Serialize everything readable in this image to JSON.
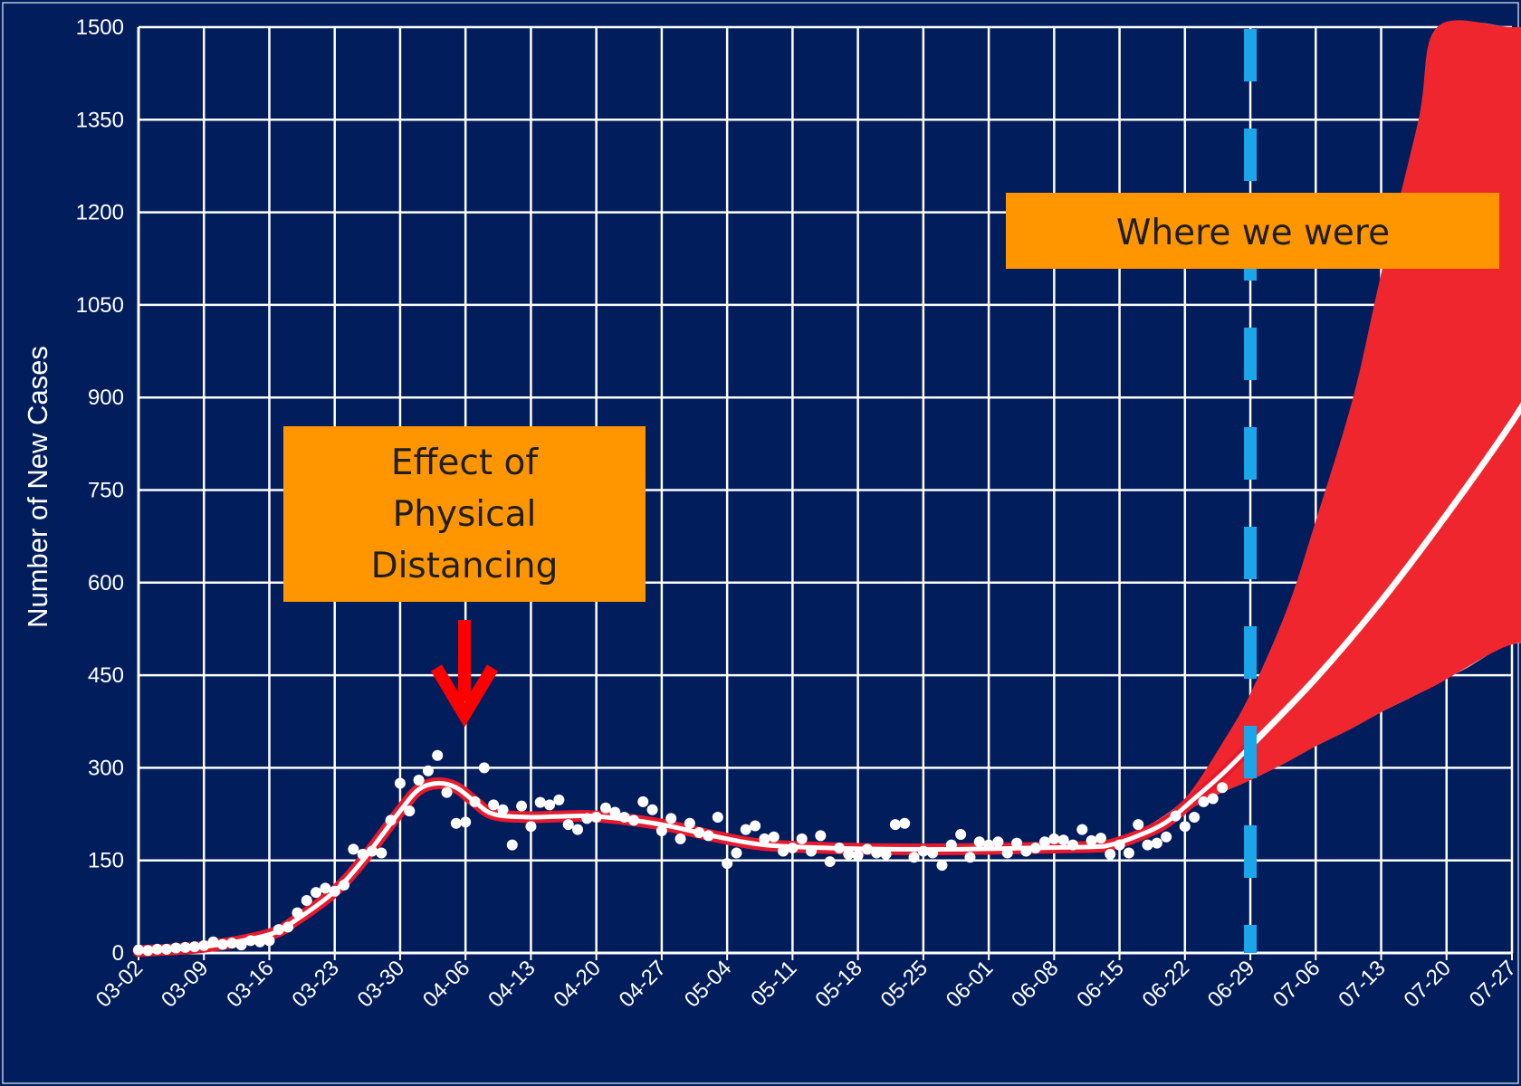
{
  "chart_data": {
    "type": "line",
    "title": "",
    "xlabel": "",
    "ylabel": "Number of New Cases",
    "ylim": [
      0,
      1500
    ],
    "xlim": [
      "03-02",
      "07-27"
    ],
    "yticks": [
      0,
      150,
      300,
      450,
      600,
      750,
      900,
      1050,
      1200,
      1350,
      1500
    ],
    "xticks": [
      "03-02",
      "03-09",
      "03-16",
      "03-23",
      "03-30",
      "04-06",
      "04-13",
      "04-20",
      "04-27",
      "05-04",
      "05-11",
      "05-18",
      "05-25",
      "06-01",
      "06-08",
      "06-15",
      "06-22",
      "06-29",
      "07-06",
      "07-13",
      "07-20",
      "07-27"
    ],
    "grid": true,
    "colors": {
      "background": "#021d5b",
      "grid": "#ffffff",
      "points": "#ffffff",
      "fit_line": "#ffffff",
      "fit_outline": "#e8192c",
      "projection_band": "#f0262f",
      "projection_band_outer": "#c9a0b6",
      "vline": "#1aa6e8",
      "annotation_box": "#ff9600",
      "arrow": "#ff0000"
    },
    "observed_points": [
      [
        "03-02",
        5
      ],
      [
        "03-03",
        4
      ],
      [
        "03-04",
        6
      ],
      [
        "03-05",
        6
      ],
      [
        "03-06",
        8
      ],
      [
        "03-07",
        9
      ],
      [
        "03-08",
        10
      ],
      [
        "03-09",
        12
      ],
      [
        "03-10",
        18
      ],
      [
        "03-11",
        14
      ],
      [
        "03-12",
        16
      ],
      [
        "03-13",
        13
      ],
      [
        "03-14",
        20
      ],
      [
        "03-15",
        18
      ],
      [
        "03-16",
        20
      ],
      [
        "03-17",
        38
      ],
      [
        "03-18",
        42
      ],
      [
        "03-19",
        65
      ],
      [
        "03-20",
        85
      ],
      [
        "03-21",
        98
      ],
      [
        "03-22",
        105
      ],
      [
        "03-23",
        100
      ],
      [
        "03-24",
        110
      ],
      [
        "03-25",
        168
      ],
      [
        "03-26",
        160
      ],
      [
        "03-27",
        165
      ],
      [
        "03-28",
        162
      ],
      [
        "03-29",
        215
      ],
      [
        "03-30",
        275
      ],
      [
        "03-31",
        230
      ],
      [
        "04-01",
        280
      ],
      [
        "04-02",
        295
      ],
      [
        "04-03",
        320
      ],
      [
        "04-04",
        260
      ],
      [
        "04-05",
        210
      ],
      [
        "04-06",
        212
      ],
      [
        "04-07",
        245
      ],
      [
        "04-08",
        300
      ],
      [
        "04-09",
        240
      ],
      [
        "04-10",
        232
      ],
      [
        "04-11",
        175
      ],
      [
        "04-12",
        238
      ],
      [
        "04-13",
        205
      ],
      [
        "04-14",
        244
      ],
      [
        "04-15",
        240
      ],
      [
        "04-16",
        248
      ],
      [
        "04-17",
        208
      ],
      [
        "04-18",
        200
      ],
      [
        "04-19",
        218
      ],
      [
        "04-20",
        220
      ],
      [
        "04-21",
        235
      ],
      [
        "04-22",
        228
      ],
      [
        "04-23",
        220
      ],
      [
        "04-24",
        215
      ],
      [
        "04-25",
        245
      ],
      [
        "04-26",
        232
      ],
      [
        "04-27",
        198
      ],
      [
        "04-28",
        218
      ],
      [
        "04-29",
        185
      ],
      [
        "04-30",
        210
      ],
      [
        "05-01",
        195
      ],
      [
        "05-02",
        190
      ],
      [
        "05-03",
        220
      ],
      [
        "05-04",
        145
      ],
      [
        "05-05",
        162
      ],
      [
        "05-06",
        200
      ],
      [
        "05-07",
        206
      ],
      [
        "05-08",
        185
      ],
      [
        "05-09",
        188
      ],
      [
        "05-10",
        165
      ],
      [
        "05-11",
        170
      ],
      [
        "05-12",
        185
      ],
      [
        "05-13",
        165
      ],
      [
        "05-14",
        190
      ],
      [
        "05-15",
        148
      ],
      [
        "05-16",
        170
      ],
      [
        "05-17",
        160
      ],
      [
        "05-18",
        158
      ],
      [
        "05-19",
        168
      ],
      [
        "05-20",
        162
      ],
      [
        "05-21",
        160
      ],
      [
        "05-22",
        208
      ],
      [
        "05-23",
        210
      ],
      [
        "05-24",
        155
      ],
      [
        "05-25",
        165
      ],
      [
        "05-26",
        162
      ],
      [
        "05-27",
        142
      ],
      [
        "05-28",
        175
      ],
      [
        "05-29",
        192
      ],
      [
        "05-30",
        155
      ],
      [
        "05-31",
        180
      ],
      [
        "06-01",
        175
      ],
      [
        "06-02",
        180
      ],
      [
        "06-03",
        162
      ],
      [
        "06-04",
        178
      ],
      [
        "06-05",
        165
      ],
      [
        "06-06",
        170
      ],
      [
        "06-07",
        180
      ],
      [
        "06-08",
        185
      ],
      [
        "06-09",
        183
      ],
      [
        "06-10",
        175
      ],
      [
        "06-11",
        200
      ],
      [
        "06-12",
        182
      ],
      [
        "06-13",
        186
      ],
      [
        "06-14",
        160
      ],
      [
        "06-15",
        175
      ],
      [
        "06-16",
        162
      ],
      [
        "06-17",
        208
      ],
      [
        "06-18",
        175
      ],
      [
        "06-19",
        178
      ],
      [
        "06-20",
        188
      ],
      [
        "06-21",
        222
      ],
      [
        "06-22",
        205
      ],
      [
        "06-23",
        220
      ],
      [
        "06-24",
        245
      ],
      [
        "06-25",
        250
      ],
      [
        "06-26",
        268
      ]
    ],
    "series": [
      {
        "values": [
          [
            0,
            3
          ],
          [
            7,
            10
          ],
          [
            14,
            30
          ],
          [
            17,
            55
          ],
          [
            21,
            100
          ],
          [
            24,
            150
          ],
          [
            28,
            230
          ],
          [
            30,
            265
          ],
          [
            32,
            275
          ],
          [
            34,
            268
          ],
          [
            36,
            245
          ],
          [
            38,
            225
          ],
          [
            42,
            220
          ],
          [
            48,
            222
          ],
          [
            53,
            215
          ],
          [
            57,
            205
          ],
          [
            62,
            188
          ],
          [
            67,
            175
          ],
          [
            74,
            170
          ],
          [
            81,
            168
          ],
          [
            88,
            168
          ],
          [
            95,
            170
          ],
          [
            102,
            172
          ],
          [
            104,
            175
          ],
          [
            107,
            190
          ],
          [
            110,
            212
          ],
          [
            113,
            250
          ],
          [
            116,
            290
          ],
          [
            119,
            335
          ]
        ]
      },
      {
        "values": [
          [
            119,
            335
          ],
          [
            126,
            445
          ],
          [
            133,
            570
          ],
          [
            140,
            710
          ],
          [
            147,
            860
          ],
          [
            151,
            960
          ],
          [
            153,
            1015
          ]
        ]
      }
    ],
    "bands": [
      {
        "values": [
          [
            108,
            205,
            205
          ],
          [
            112,
            230,
            250
          ],
          [
            116,
            260,
            330
          ],
          [
            119,
            280,
            400
          ],
          [
            123,
            310,
            520
          ],
          [
            126,
            335,
            640
          ],
          [
            130,
            365,
            820
          ],
          [
            133,
            390,
            980
          ],
          [
            137,
            420,
            1200
          ],
          [
            140,
            445,
            1400
          ],
          [
            142,
            460,
            1500
          ],
          [
            147,
            500,
            1500
          ],
          [
            153,
            500,
            1500
          ]
        ]
      },
      {
        "values": [
          [
            108,
            205,
            205
          ],
          [
            112,
            230,
            250
          ],
          [
            116,
            260,
            340
          ],
          [
            119,
            280,
            420
          ],
          [
            123,
            310,
            560
          ],
          [
            126,
            335,
            700
          ],
          [
            130,
            365,
            900
          ],
          [
            133,
            390,
            1100
          ],
          [
            137,
            420,
            1350
          ],
          [
            139,
            435,
            1500
          ],
          [
            147,
            500,
            1500
          ],
          [
            153,
            500,
            1500
          ]
        ]
      }
    ],
    "vline": {
      "x": "06-29"
    },
    "annotations": [
      {
        "text": "Effect of\nPhysical\nDistancing"
      },
      {
        "text": "Where we were"
      }
    ]
  }
}
